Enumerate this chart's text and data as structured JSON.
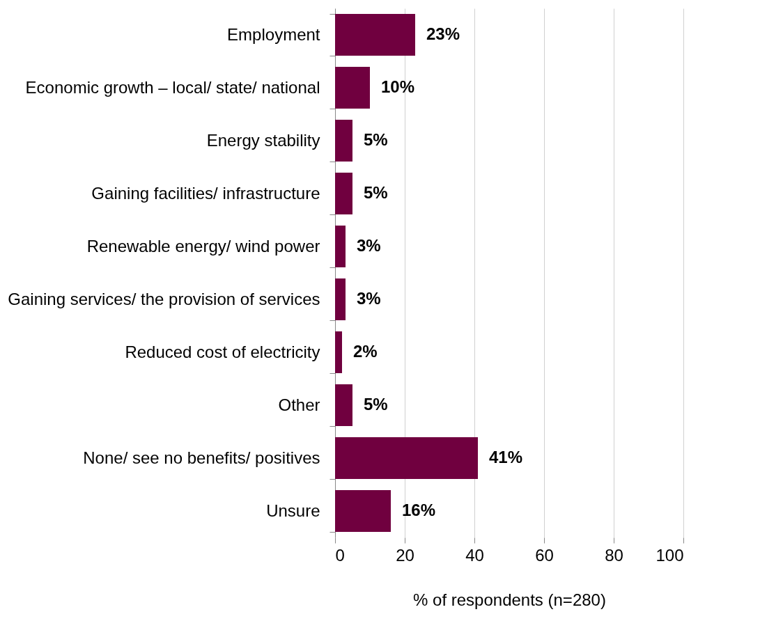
{
  "chart_data": {
    "type": "bar",
    "orientation": "horizontal",
    "xlabel": "% of respondents (n=280)",
    "categories": [
      "Employment",
      "Economic growth – local/ state/ national",
      "Energy stability",
      "Gaining facilities/ infrastructure",
      "Renewable energy/ wind power",
      "Gaining services/ the provision of services",
      "Reduced cost of electricity",
      "Other",
      "None/ see no benefits/ positives",
      "Unsure"
    ],
    "values": [
      23,
      10,
      5,
      5,
      3,
      3,
      2,
      5,
      41,
      16
    ],
    "value_labels": [
      "23%",
      "10%",
      "5%",
      "5%",
      "3%",
      "3%",
      "2%",
      "5%",
      "41%",
      "16%"
    ],
    "color": "#70003f",
    "xlim": [
      0,
      100
    ],
    "xticks": [
      0,
      20,
      40,
      60,
      80,
      100
    ],
    "grid": "x"
  }
}
